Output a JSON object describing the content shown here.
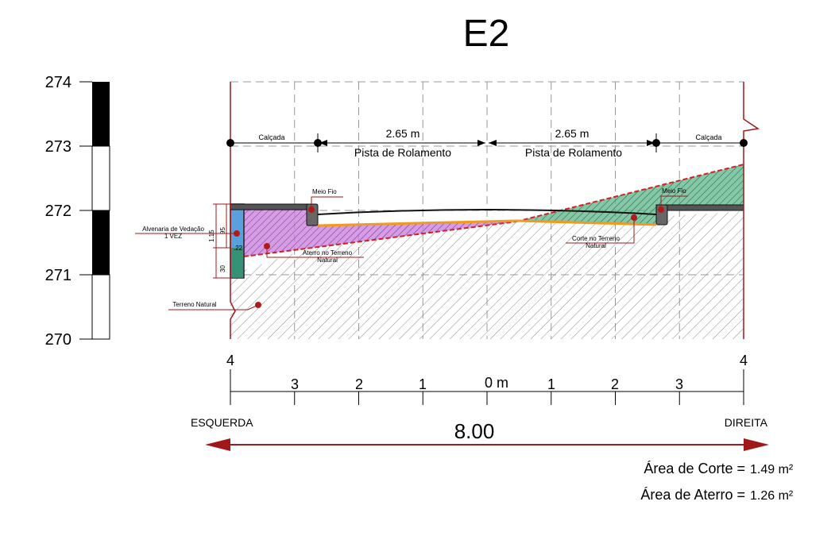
{
  "title": "E2",
  "elevation_scale": {
    "labels": [
      "274",
      "273",
      "272",
      "271",
      "270"
    ],
    "values": [
      274,
      273,
      272,
      271,
      270
    ]
  },
  "dimensions": {
    "lane_left": "2.65 m",
    "lane_right": "2.65 m",
    "lane_name_left": "Pista de Rolamento",
    "lane_name_right": "Pista de Rolamento",
    "sidewalk_left": "Calçada",
    "sidewalk_right": "Calçada"
  },
  "annotations": {
    "curb_left": "Meio Fio",
    "curb_right": "Meio Fio",
    "wall_line1": "Alvenaria de Vedação",
    "wall_line2": "1 VEZ",
    "fill_line1": "Aterro no Terreno",
    "fill_line2": "Natural",
    "cut_line1": "Corte no Terreno",
    "cut_line2": "Natural",
    "natural_ground": "Terreno  Natural",
    "dim_115": "1.15",
    "dim_95": "95",
    "dim_22": ".22",
    "dim_30": "30"
  },
  "distance_axis": {
    "top_left": "4",
    "top_right": "4",
    "left_ticks": [
      "3",
      "2",
      "1"
    ],
    "center": "0 m",
    "right_ticks": [
      "1",
      "2",
      "3"
    ]
  },
  "side_labels": {
    "left": "ESQUERDA",
    "right": "DIREITA"
  },
  "total_width": "8.00",
  "areas": {
    "cut_label": "Área de Corte =",
    "cut_value": "1.49 m²",
    "fill_label": "Área de Aterro =",
    "fill_value": "1.26 m²"
  },
  "colors": {
    "outline": "#a01818",
    "cut": "#2f8f62",
    "fill": "#b04fc8",
    "wall": "#5aa0dc",
    "subgrade": "#f29a1d",
    "point": "#b31b1b"
  }
}
